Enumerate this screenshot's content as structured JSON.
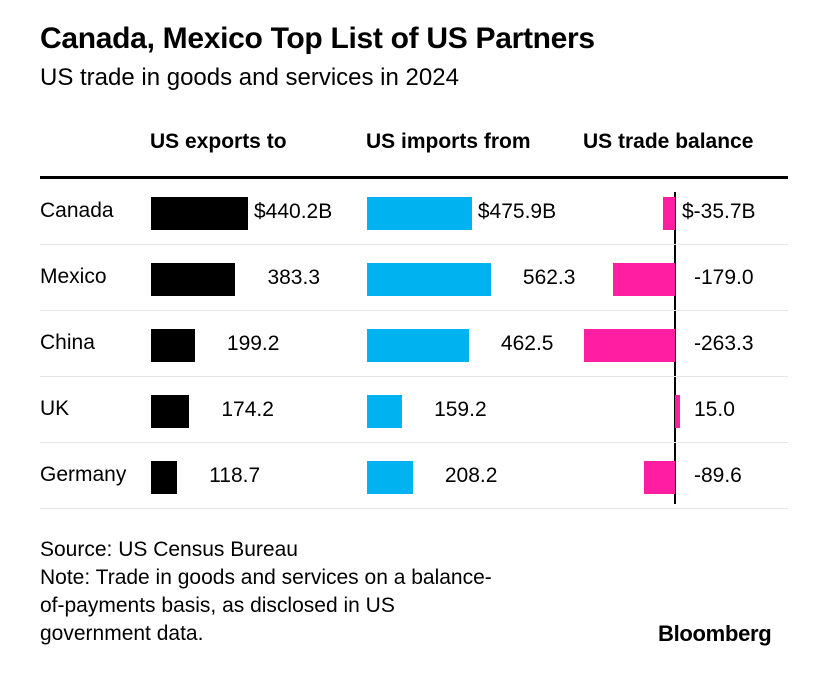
{
  "chart_data": {
    "type": "table",
    "title": "Canada, Mexico Top List of US Partners",
    "subtitle": "US trade in goods and services in 2024",
    "columns": [
      "US exports to",
      "US imports from",
      "US trade balance"
    ],
    "unit": "$ billions",
    "categories": [
      "Canada",
      "Mexico",
      "China",
      "UK",
      "Germany"
    ],
    "series": [
      {
        "name": "US exports to",
        "values": [
          440.2,
          383.3,
          199.2,
          174.2,
          118.7
        ],
        "labels": [
          "$440.2B",
          "383.3",
          "199.2",
          "174.2",
          "118.7"
        ],
        "color": "#000000"
      },
      {
        "name": "US imports from",
        "values": [
          475.9,
          562.3,
          462.5,
          159.2,
          208.2
        ],
        "labels": [
          "$475.9B",
          "562.3",
          "462.5",
          "159.2",
          "208.2"
        ],
        "color": "#00b3f0"
      },
      {
        "name": "US trade balance",
        "values": [
          -35.7,
          -179.0,
          -263.3,
          15.0,
          -89.6
        ],
        "labels": [
          "$-35.7B",
          "-179.0",
          "-263.3",
          "15.0",
          "-89.6"
        ],
        "color": "#ff1ea1"
      }
    ]
  },
  "footer": {
    "source": "Source: US Census Bureau",
    "note_lines": [
      "Note: Trade in goods and services on a balance-",
      "of-payments basis, as disclosed in US",
      "government data."
    ]
  },
  "brand": "Bloomberg"
}
